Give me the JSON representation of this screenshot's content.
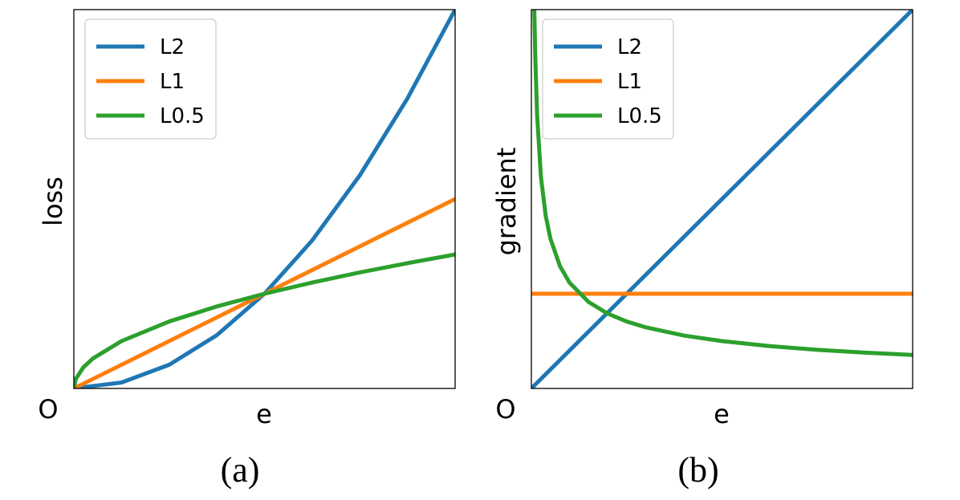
{
  "colors": {
    "L2": "#1f77b4",
    "L1": "#ff7f0e",
    "L0.5": "#2ca02c",
    "axes": "#000000",
    "legend_border": "#cccccc"
  },
  "chart_data": [
    {
      "type": "line",
      "panel_label": "(a)",
      "xlabel": "e",
      "ylabel": "loss",
      "origin_label": "O",
      "x_range": [
        0,
        2
      ],
      "y_range": [
        0,
        4
      ],
      "legend_position": "top-left",
      "grid": false,
      "series": [
        {
          "name": "L2",
          "x": [
            0,
            0.25,
            0.5,
            0.75,
            1.0,
            1.25,
            1.5,
            1.75,
            2.0
          ],
          "y": [
            0,
            0.0625,
            0.25,
            0.5625,
            1.0,
            1.5625,
            2.25,
            3.0625,
            4.0
          ]
        },
        {
          "name": "L1",
          "x": [
            0,
            0.5,
            1.0,
            1.5,
            2.0
          ],
          "y": [
            0,
            0.5,
            1.0,
            1.5,
            2.0
          ]
        },
        {
          "name": "L0.5",
          "x": [
            0,
            0.01,
            0.05,
            0.1,
            0.25,
            0.5,
            0.75,
            1.0,
            1.25,
            1.5,
            1.75,
            2.0
          ],
          "y": [
            0,
            0.1,
            0.2236,
            0.3162,
            0.5,
            0.7071,
            0.866,
            1.0,
            1.118,
            1.2247,
            1.3229,
            1.4142
          ]
        }
      ]
    },
    {
      "type": "line",
      "panel_label": "(b)",
      "xlabel": "e",
      "ylabel": "gradient",
      "origin_label": "O",
      "x_range": [
        0,
        2
      ],
      "y_range": [
        0,
        2
      ],
      "legend_position": "top-left",
      "grid": false,
      "series": [
        {
          "name": "L2",
          "x": [
            0,
            2.0
          ],
          "y": [
            0,
            2.0
          ]
        },
        {
          "name": "L1",
          "x": [
            0,
            2.0
          ],
          "y": [
            0.5,
            0.5
          ]
        },
        {
          "name": "L0.5",
          "x": [
            0.0153,
            0.02,
            0.03,
            0.05,
            0.075,
            0.1,
            0.15,
            0.2,
            0.3,
            0.4,
            0.5,
            0.6,
            0.8,
            1.0,
            1.25,
            1.5,
            1.75,
            2.0
          ],
          "y": [
            2.0,
            1.7678,
            1.4434,
            1.118,
            0.9129,
            0.7906,
            0.6455,
            0.559,
            0.4564,
            0.3953,
            0.3536,
            0.3227,
            0.2795,
            0.25,
            0.2236,
            0.2041,
            0.189,
            0.1768
          ]
        }
      ]
    }
  ]
}
